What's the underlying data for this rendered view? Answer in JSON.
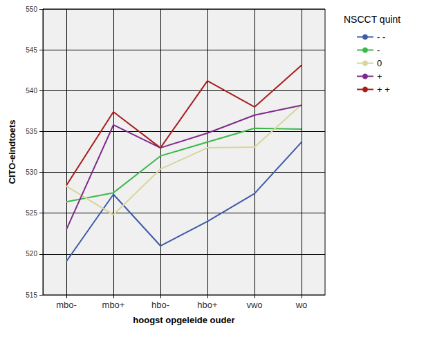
{
  "chart_data": {
    "type": "line",
    "x_label": "hoogst opgeleide ouder",
    "y_label": "CITO-eindtoets",
    "legend_title": "NSCCT quint",
    "categories": [
      "mbo-",
      "mbo+",
      "hbo-",
      "hbo+",
      "vwo",
      "wo"
    ],
    "series": [
      {
        "name": "- -",
        "color": "#3d5aa8",
        "values": [
          519.1,
          527.3,
          521.0,
          524.0,
          527.4,
          533.7
        ]
      },
      {
        "name": "-",
        "color": "#3cb84a",
        "values": [
          526.4,
          527.5,
          532.0,
          533.7,
          535.4,
          535.3
        ]
      },
      {
        "name": "0",
        "color": "#d9d59c",
        "values": [
          528.3,
          524.8,
          530.4,
          533.0,
          533.1,
          538.3
        ]
      },
      {
        "name": "+",
        "color": "#7e2a8a",
        "values": [
          523.0,
          535.8,
          533.0,
          534.8,
          537.0,
          538.2
        ]
      },
      {
        "name": "+ +",
        "color": "#a81c1c",
        "values": [
          528.4,
          537.4,
          533.0,
          541.2,
          538.0,
          543.1
        ]
      }
    ],
    "ylim": [
      515,
      550
    ],
    "yticks": [
      515,
      520,
      525,
      530,
      535,
      540,
      545,
      550
    ],
    "grid": true,
    "legend": "right"
  }
}
